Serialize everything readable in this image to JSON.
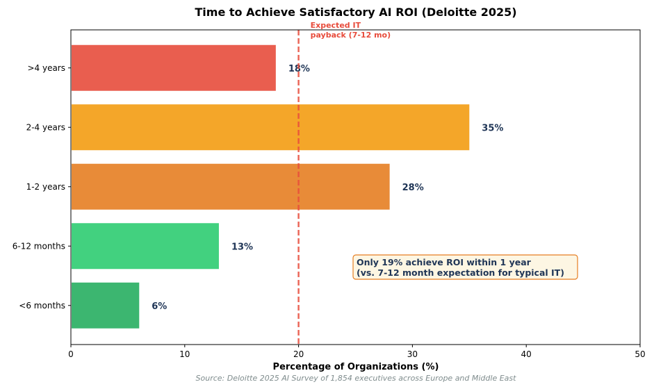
{
  "chart_data": {
    "type": "bar",
    "orientation": "horizontal",
    "title": "Time to Achieve Satisfactory AI ROI (Deloitte 2025)",
    "xlabel": "Percentage of Organizations (%)",
    "ylabel": "",
    "xlim": [
      0,
      50
    ],
    "xticks": [
      "0",
      "10",
      "20",
      "30",
      "40",
      "50"
    ],
    "categories": [
      ">4 years",
      "2-4 years",
      "1-2 years",
      "6-12 months",
      "<6 months"
    ],
    "values": [
      18,
      35,
      28,
      13,
      6
    ],
    "data_labels": [
      "18%",
      "35%",
      "28%",
      "13%",
      "6%"
    ],
    "colors": [
      "#e74c3c",
      "#f39c12",
      "#e67e22",
      "#2ecc71",
      "#27ae60"
    ],
    "reference_line": {
      "x": 20,
      "color": "#e74c3c",
      "label_line1": "Expected IT",
      "label_line2": "payback (7-12 mo)"
    },
    "annotation": {
      "line1": "Only 19% achieve ROI within 1 year",
      "line2": "(vs. 7-12 month expectation for typical IT)",
      "border_color": "#e67e22",
      "fill_color": "#fdf6e3"
    },
    "source": "Source: Deloitte 2025 AI Survey of 1,854 executives across Europe and Middle East",
    "grid": false
  }
}
